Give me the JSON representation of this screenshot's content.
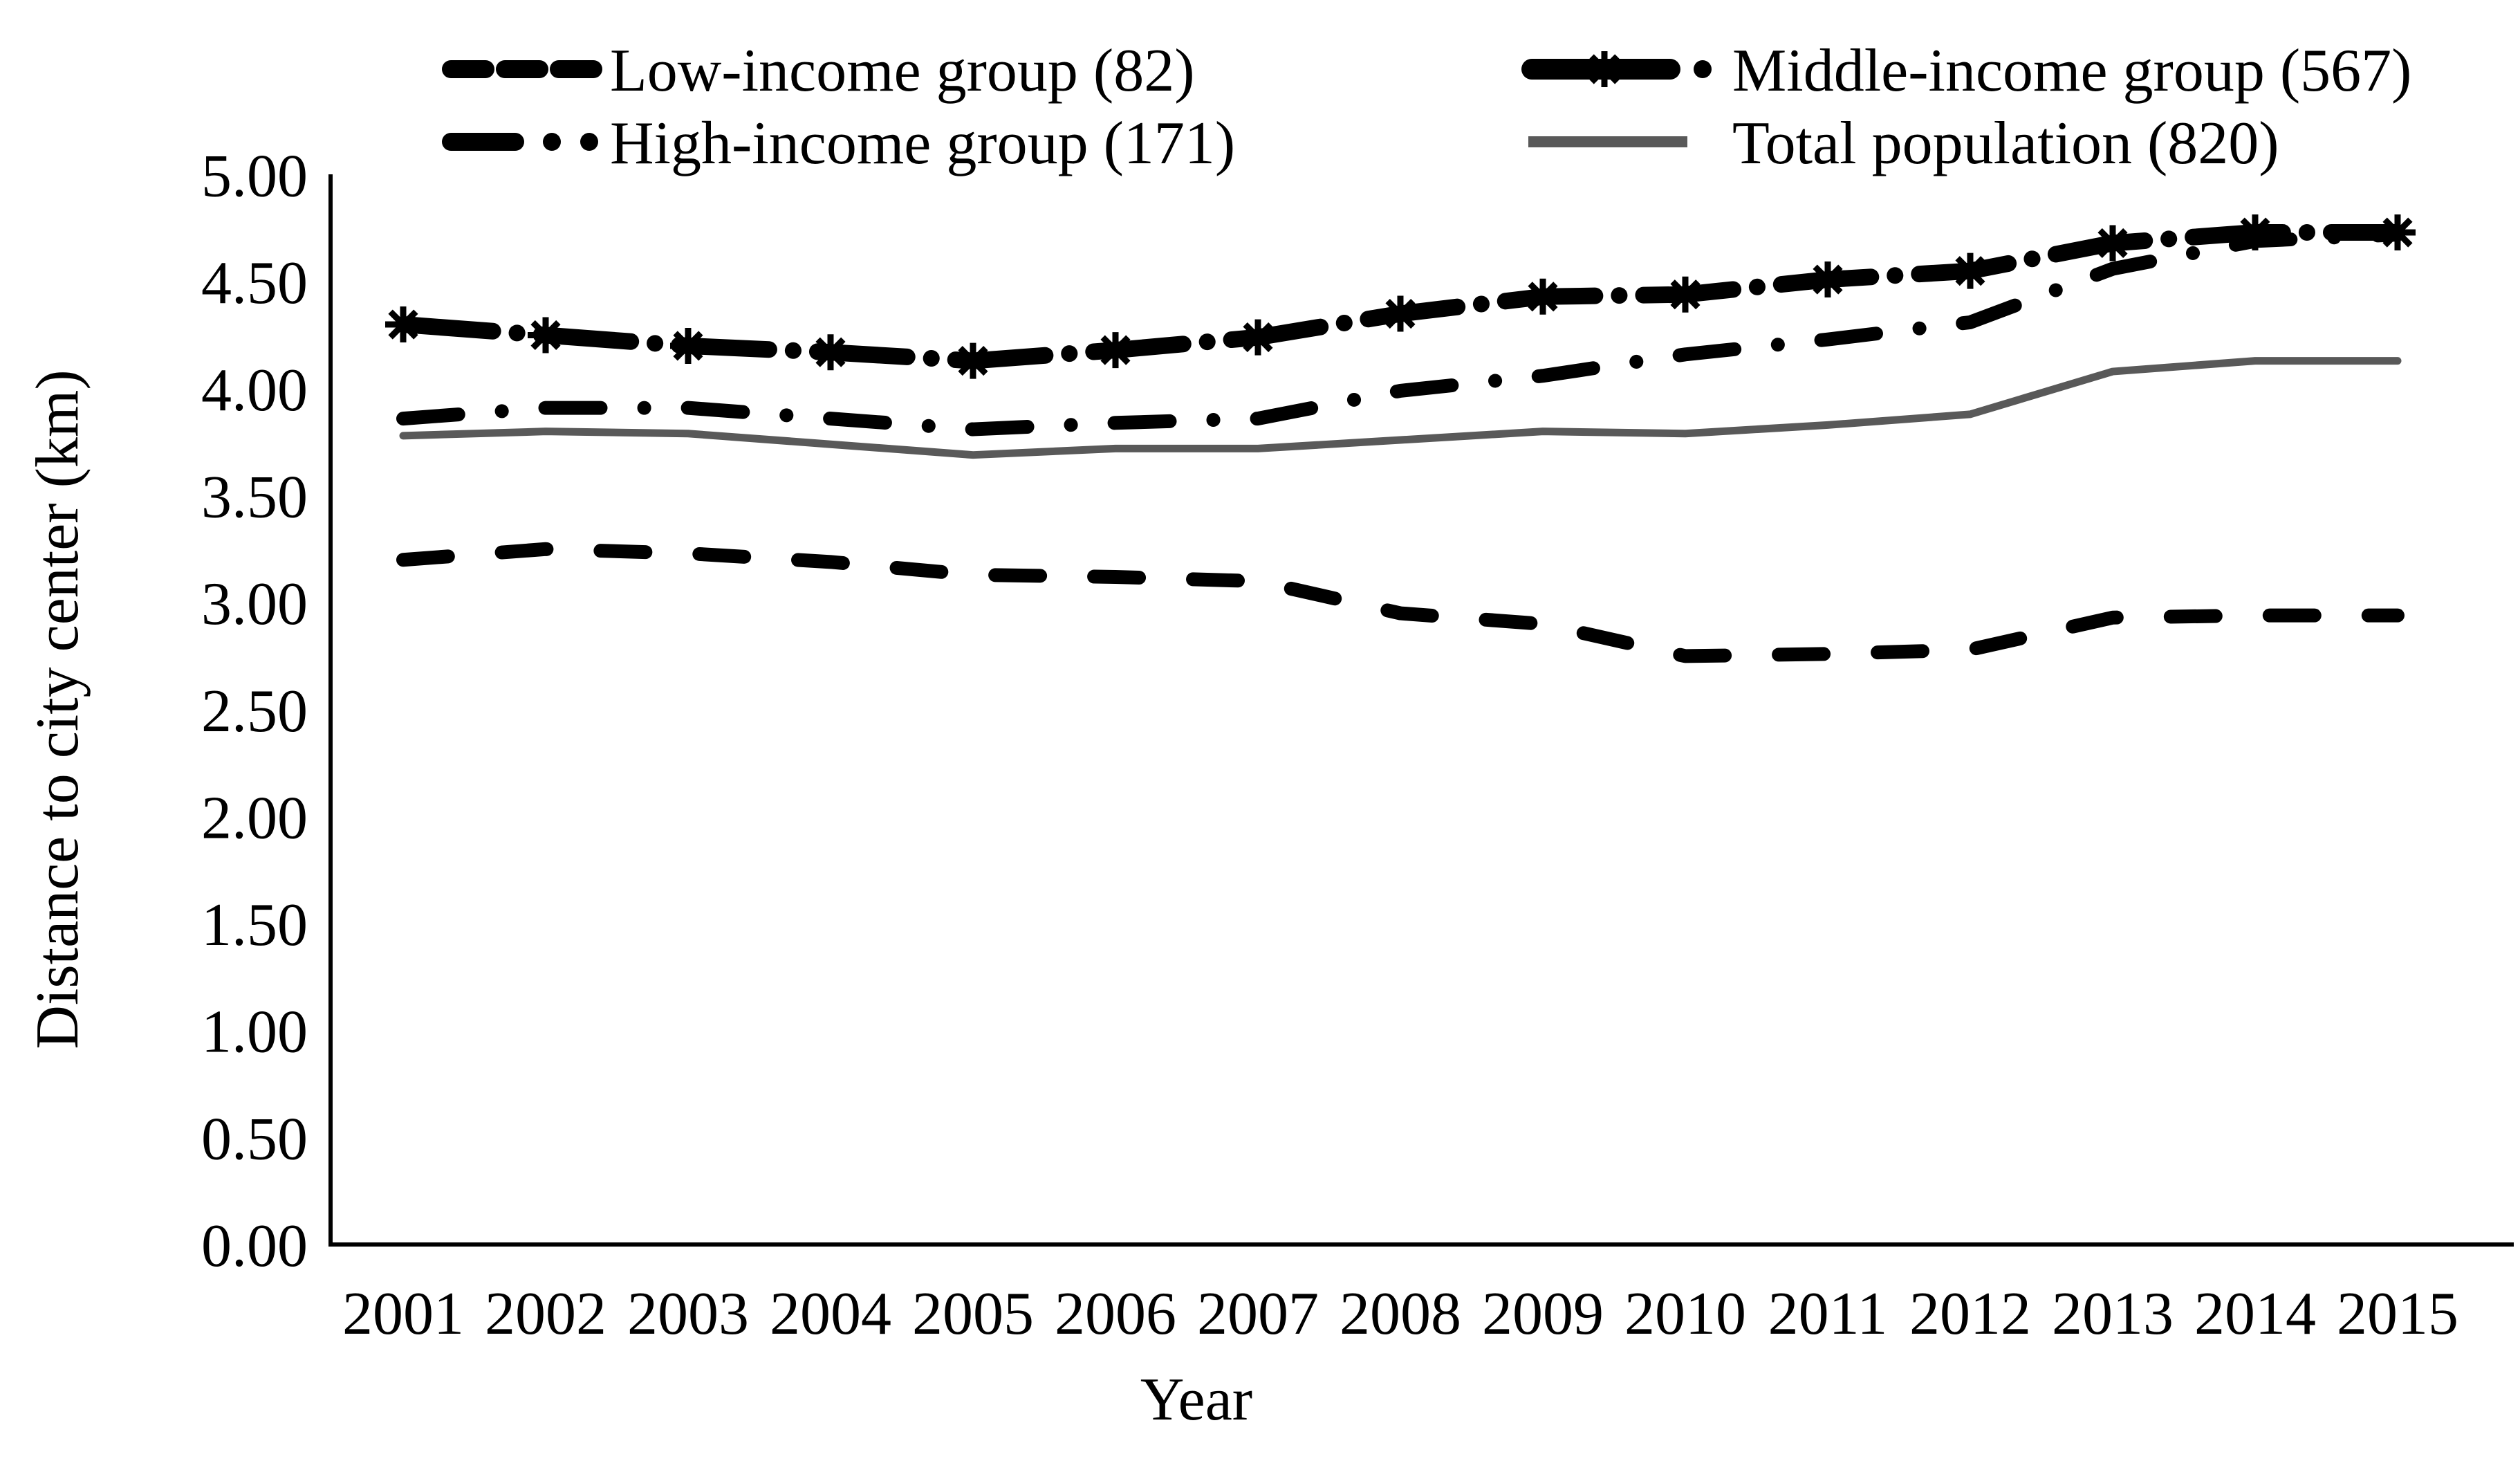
{
  "figure": {
    "background": "#ffffff",
    "text_color": "#000000"
  },
  "chart_data": {
    "type": "line",
    "title": "",
    "xlabel": "Year",
    "ylabel": "Distance to city center (km)",
    "ylim": [
      0,
      5
    ],
    "ytick_step": 0.5,
    "ytick_labels": [
      "0.00",
      "0.50",
      "1.00",
      "1.50",
      "2.00",
      "2.50",
      "3.00",
      "3.50",
      "4.00",
      "4.50",
      "5.00"
    ],
    "x_categories": [
      "2001",
      "2002",
      "2003",
      "2004",
      "2005",
      "2006",
      "2007",
      "2008",
      "2009",
      "2010",
      "2011",
      "2012",
      "2013",
      "2014",
      "2015"
    ],
    "grid": false,
    "legend_position": "top",
    "legend_columns": 2,
    "series": [
      {
        "name": "Low-income group (82)",
        "style": "dashed",
        "color": "#000000",
        "marker": "none",
        "values": [
          3.2,
          3.25,
          3.23,
          3.19,
          3.13,
          3.12,
          3.1,
          2.95,
          2.9,
          2.75,
          2.76,
          2.78,
          2.93,
          2.94,
          2.94
        ]
      },
      {
        "name": "High-income group (171)",
        "style": "dash-dot",
        "color": "#000000",
        "marker": "none",
        "values": [
          3.86,
          3.91,
          3.91,
          3.86,
          3.81,
          3.84,
          3.86,
          3.99,
          4.06,
          4.16,
          4.23,
          4.31,
          4.56,
          4.69,
          4.72
        ]
      },
      {
        "name": "Middle-income group (567)",
        "style": "dash-dot-bold",
        "color": "#000000",
        "marker": "star-8",
        "values": [
          4.3,
          4.25,
          4.2,
          4.17,
          4.13,
          4.18,
          4.24,
          4.35,
          4.43,
          4.44,
          4.51,
          4.55,
          4.68,
          4.73,
          4.73
        ]
      },
      {
        "name": "Total population (820)",
        "style": "solid",
        "color": "#595959",
        "marker": "none",
        "values": [
          3.78,
          3.8,
          3.79,
          3.74,
          3.69,
          3.72,
          3.72,
          3.76,
          3.8,
          3.79,
          3.83,
          3.88,
          4.08,
          4.13,
          4.13
        ]
      }
    ],
    "legend_row_major_order": [
      0,
      2,
      1,
      3
    ]
  }
}
